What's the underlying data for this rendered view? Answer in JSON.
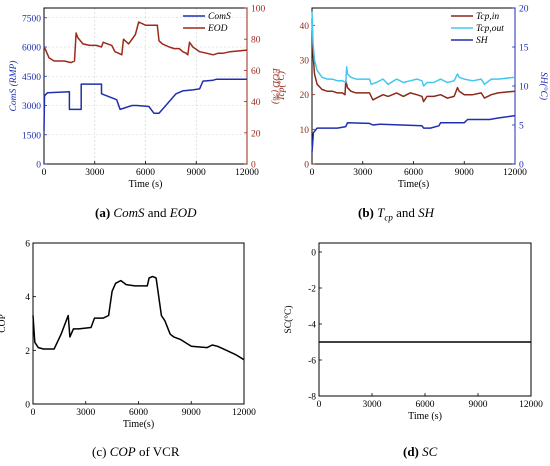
{
  "chart_data": [
    {
      "type": "line",
      "panel": "(a)",
      "caption": {
        "label": "(a)",
        "parts": [
          "ComS",
          " and ",
          "EOD"
        ]
      },
      "xlabel": "Time (s)",
      "ylabel_left": "ComS (RMP)",
      "ylabel_right": "EOD (%)",
      "xlim": [
        0,
        12000
      ],
      "ylim_left": [
        0,
        8000
      ],
      "ylim_right": [
        0,
        100
      ],
      "xticks": [
        "0",
        "3000",
        "6000",
        "9000",
        "12000"
      ],
      "yticks_left": [
        "0",
        "1500",
        "3000",
        "4500",
        "6000",
        "7500"
      ],
      "yticks_right": [
        "0",
        "20",
        "40",
        "60",
        "80",
        "100"
      ],
      "legend_position": "top-right",
      "grid": true,
      "series": [
        {
          "name": "ComS",
          "axis": "left",
          "color": "#1f2fb0",
          "x": [
            0,
            30,
            200,
            1500,
            1501,
            2200,
            2201,
            3400,
            3401,
            4300,
            4500,
            5200,
            5500,
            6200,
            6500,
            6800,
            7200,
            7800,
            8200,
            8800,
            9200,
            9400,
            10000,
            10200,
            12000
          ],
          "y": [
            1700,
            3500,
            3650,
            3700,
            2800,
            2800,
            4100,
            4100,
            3600,
            3300,
            2800,
            3000,
            3000,
            2950,
            2600,
            2600,
            3000,
            3600,
            3750,
            3800,
            3850,
            4250,
            4300,
            4350,
            4350
          ]
        },
        {
          "name": "EOD",
          "axis": "right",
          "color": "#9b2a1a",
          "x": [
            0,
            60,
            300,
            600,
            1200,
            1600,
            1800,
            1900,
            2000,
            2300,
            2700,
            3100,
            3400,
            3500,
            4000,
            4200,
            4400,
            4600,
            4700,
            5000,
            5400,
            5600,
            6000,
            6200,
            6500,
            6700,
            6800,
            7000,
            7400,
            7700,
            8000,
            8200,
            8400,
            8500,
            8600,
            8800,
            9200,
            9600,
            10000,
            10300,
            10600,
            11000,
            12000
          ],
          "y": [
            75,
            74,
            68,
            66,
            66,
            65,
            66,
            84,
            81,
            77,
            76,
            76,
            75,
            78,
            76,
            72,
            71,
            70,
            80,
            77,
            83,
            91,
            89,
            89,
            89,
            89,
            79,
            77,
            75,
            74,
            74,
            72,
            71,
            70,
            78,
            75,
            72,
            71,
            70,
            71,
            71,
            72,
            73
          ]
        }
      ]
    },
    {
      "type": "line",
      "panel": "(b)",
      "caption": {
        "label": "(b)",
        "parts": [
          "T",
          "cp",
          " and ",
          "SH"
        ]
      },
      "xlabel": "Time(s)",
      "ylabel_left": "Tcp(°C)",
      "ylabel_right": "SH(°C)",
      "xlim": [
        0,
        12000
      ],
      "ylim_left": [
        0,
        45
      ],
      "ylim_right": [
        0,
        20
      ],
      "xticks": [
        "0",
        "3000",
        "6000",
        "9000",
        "12000"
      ],
      "yticks_left": [
        "0",
        "10",
        "20",
        "30",
        "40"
      ],
      "yticks_right": [
        "0",
        "5",
        "10",
        "15",
        "20"
      ],
      "legend_position": "top-right",
      "grid": false,
      "series": [
        {
          "name": "Tcp,in",
          "axis": "left",
          "color": "#8b2a1a",
          "x": [
            0,
            60,
            150,
            300,
            600,
            900,
            1200,
            1500,
            1800,
            1950,
            2000,
            2100,
            2300,
            2600,
            3000,
            3400,
            3600,
            3800,
            4200,
            4500,
            5000,
            5400,
            5800,
            6200,
            6500,
            6600,
            6800,
            7200,
            7600,
            8000,
            8400,
            8600,
            8700,
            9000,
            9500,
            10000,
            10200,
            10600,
            11000,
            12000
          ],
          "y": [
            42,
            32,
            26,
            23,
            21.5,
            21,
            21,
            20.5,
            20.5,
            20,
            24,
            22,
            21,
            20.5,
            20.5,
            20.5,
            18.5,
            19,
            20,
            19.5,
            20.5,
            19.5,
            20.5,
            20,
            19.5,
            18,
            19.5,
            19.5,
            20,
            19,
            19.5,
            22,
            21,
            20,
            20,
            20.5,
            19,
            20,
            20.5,
            21
          ]
        },
        {
          "name": "Tcp,out",
          "axis": "left",
          "color": "#43c7ee",
          "x": [
            0,
            60,
            150,
            300,
            600,
            900,
            1200,
            1500,
            1800,
            2000,
            2050,
            2100,
            2300,
            2600,
            3000,
            3400,
            3500,
            3800,
            4200,
            4500,
            5000,
            5400,
            5800,
            6200,
            6500,
            6600,
            6800,
            7200,
            7600,
            8000,
            8400,
            8600,
            8700,
            9000,
            9500,
            10000,
            10200,
            10600,
            11000,
            12000
          ],
          "y": [
            44,
            35,
            30,
            27,
            25,
            24.5,
            24.5,
            24,
            24,
            23.5,
            28,
            26,
            25,
            24.5,
            24.5,
            24.5,
            23,
            23.5,
            24.5,
            23,
            24.5,
            23.5,
            24,
            24.5,
            24,
            22.5,
            23.5,
            23.5,
            24.5,
            23.5,
            24,
            26,
            25,
            24.5,
            24,
            24.5,
            23,
            24.5,
            24.5,
            25
          ]
        },
        {
          "name": "SH",
          "axis": "right",
          "color": "#1f2fb0",
          "x": [
            0,
            80,
            300,
            1500,
            2000,
            2100,
            3400,
            3600,
            4000,
            6500,
            6600,
            7000,
            7500,
            7600,
            8000,
            9000,
            9200,
            10500,
            11000,
            12000
          ],
          "y": [
            1.5,
            4,
            4.6,
            4.6,
            4.8,
            5.3,
            5.2,
            5.0,
            5.1,
            4.9,
            4.6,
            4.6,
            4.9,
            5.3,
            5.3,
            5.3,
            5.7,
            5.7,
            5.9,
            6.2
          ]
        }
      ]
    },
    {
      "type": "line",
      "panel": "(c)",
      "caption": {
        "label": "(c)",
        "parts": [
          "COP",
          " of VCR"
        ]
      },
      "xlabel": "Time(s)",
      "ylabel": "COP",
      "xlim": [
        0,
        12000
      ],
      "ylim": [
        0,
        6
      ],
      "xticks": [
        "0",
        "3000",
        "6000",
        "9000",
        "12000"
      ],
      "yticks": [
        "0",
        "2",
        "4",
        "6"
      ],
      "grid": false,
      "series": [
        {
          "name": "",
          "color": "#000000",
          "x": [
            0,
            100,
            300,
            600,
            1200,
            1600,
            2000,
            2100,
            2300,
            2600,
            3300,
            3500,
            3700,
            4000,
            4300,
            4500,
            4700,
            5000,
            5300,
            5800,
            6500,
            6600,
            6800,
            7000,
            7300,
            7500,
            7800,
            8000,
            8400,
            9000,
            9900,
            10200,
            10500,
            11000,
            11500,
            12000
          ],
          "y": [
            3.3,
            2.3,
            2.1,
            2.05,
            2.05,
            2.6,
            3.3,
            2.5,
            2.8,
            2.8,
            2.85,
            3.2,
            3.2,
            3.2,
            3.3,
            4.2,
            4.5,
            4.6,
            4.45,
            4.4,
            4.4,
            4.7,
            4.75,
            4.7,
            3.3,
            3.1,
            2.6,
            2.5,
            2.4,
            2.15,
            2.1,
            2.2,
            2.15,
            2.0,
            1.85,
            1.65
          ]
        }
      ]
    },
    {
      "type": "line",
      "panel": "(d)",
      "caption": {
        "label": "(d)",
        "parts": [
          "SC"
        ]
      },
      "xlabel": "Time (s)",
      "ylabel": "SC(°C)",
      "xlim": [
        0,
        12000
      ],
      "ylim": [
        -8,
        0.5
      ],
      "xticks": [
        "0",
        "3000",
        "6000",
        "9000",
        "12000"
      ],
      "yticks": [
        "-8",
        "-6",
        "-4",
        "-2",
        "0"
      ],
      "grid": false,
      "series": [
        {
          "name": "",
          "color": "#000000",
          "x": [
            0,
            12000
          ],
          "y": [
            -5,
            -5
          ]
        }
      ]
    }
  ]
}
